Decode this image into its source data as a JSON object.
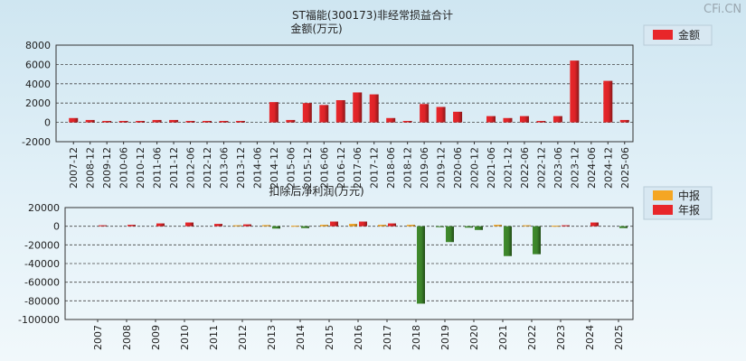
{
  "watermark": "CFi.CN",
  "colors": {
    "red": "#e8262a",
    "orange": "#f5a623",
    "green": "#3f8a2c"
  },
  "chart_data": [
    {
      "type": "bar",
      "title": "ST福能(300173)非经常损益合计",
      "ylabel": "金额(万元)",
      "ylim": [
        -2000,
        8000
      ],
      "yticks": [
        8000,
        6000,
        4000,
        2000,
        0,
        -2000
      ],
      "grid": true,
      "legend_position": "top-right",
      "series": [
        {
          "name": "金额",
          "color": "#e8262a"
        }
      ],
      "categories": [
        "2007-12",
        "2008-12",
        "2009-12",
        "2010-06",
        "2010-12",
        "2011-06",
        "2011-12",
        "2012-06",
        "2012-12",
        "2013-06",
        "2013-12",
        "2014-06",
        "2014-12",
        "2015-06",
        "2015-12",
        "2016-06",
        "2016-12",
        "2017-06",
        "2017-12",
        "2018-06",
        "2018-12",
        "2019-06",
        "2019-12",
        "2020-06",
        "2020-12",
        "2021-06",
        "2021-12",
        "2022-06",
        "2022-12",
        "2023-06",
        "2023-12",
        "2024-06",
        "2024-12",
        "2025-06"
      ],
      "values": [
        450,
        250,
        150,
        150,
        150,
        250,
        250,
        150,
        150,
        150,
        150,
        0,
        2100,
        250,
        2000,
        1800,
        2300,
        3100,
        2900,
        450,
        150,
        1900,
        1600,
        1100,
        0,
        650,
        450,
        650,
        150,
        650,
        6400,
        0,
        4300,
        250
      ]
    },
    {
      "type": "bar",
      "title": "扣除后净利润(万元)",
      "ylim": [
        -100000,
        20000
      ],
      "yticks": [
        20000,
        0,
        -20000,
        -40000,
        -60000,
        -80000,
        -100000
      ],
      "grid": true,
      "legend_position": "top-right",
      "categories": [
        "2007",
        "2008",
        "2009",
        "2010",
        "2011",
        "2012",
        "2013",
        "2014",
        "2015",
        "2016",
        "2017",
        "2018",
        "2019",
        "2020",
        "2021",
        "2022",
        "2023",
        "2024",
        "2025"
      ],
      "series": [
        {
          "name": "中报",
          "color": "#f5a623",
          "values": [
            0,
            0,
            0,
            0,
            0,
            1000,
            1200,
            500,
            1500,
            2500,
            1500,
            1500,
            -1000,
            -1500,
            1500,
            1000,
            500,
            0,
            0
          ]
        },
        {
          "name": "年报",
          "color": "#e8262a",
          "values": [
            1000,
            1500,
            3000,
            4000,
            2500,
            2000,
            -2500,
            -2000,
            5000,
            5000,
            3000,
            -83000,
            -17000,
            -4000,
            -32000,
            -30000,
            1000,
            4000,
            -2000
          ]
        }
      ]
    }
  ]
}
